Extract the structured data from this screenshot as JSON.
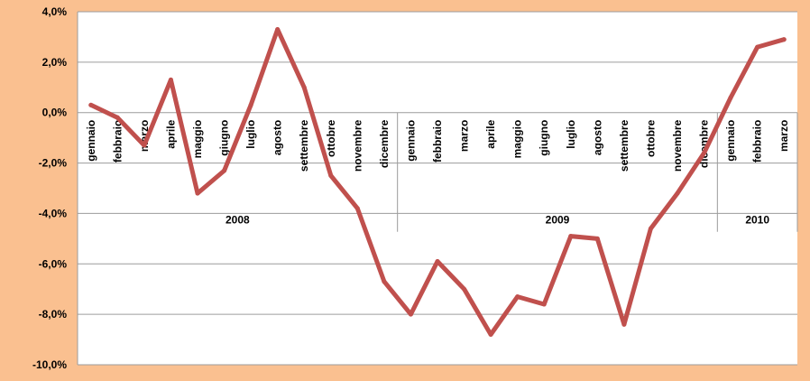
{
  "chart_data": {
    "type": "line",
    "title": "",
    "xlabel": "",
    "ylabel": "",
    "ylim": [
      -10,
      4
    ],
    "yticks": [
      4,
      2,
      0,
      -2,
      -4,
      -6,
      -8,
      -10
    ],
    "ytick_labels": [
      "4,0%",
      "2,0%",
      "0,0%",
      "-2,0%",
      "-4,0%",
      "-6,0%",
      "-8,0%",
      "-10,0%"
    ],
    "grid": true,
    "legend": "none",
    "year_groups": [
      {
        "label": "2008",
        "count": 12
      },
      {
        "label": "2009",
        "count": 12
      },
      {
        "label": "2010",
        "count": 3
      }
    ],
    "categories": [
      "gennaio",
      "febbraio",
      "marzo",
      "aprile",
      "maggio",
      "giugno",
      "luglio",
      "agosto",
      "settembre",
      "ottobre",
      "novembre",
      "dicembre",
      "gennaio",
      "febbraio",
      "marzo",
      "aprile",
      "maggio",
      "giugno",
      "luglio",
      "agosto",
      "settembre",
      "ottobre",
      "novembre",
      "dicembre",
      "gennaio",
      "febbraio",
      "marzo"
    ],
    "series": [
      {
        "values": [
          0.3,
          -0.2,
          -1.3,
          1.3,
          -3.2,
          -2.3,
          0.3,
          3.3,
          1.0,
          -2.5,
          -3.8,
          -6.7,
          -8.0,
          -5.9,
          -7.0,
          -8.8,
          -7.3,
          -7.6,
          -4.9,
          -5.0,
          -8.4,
          -4.6,
          -3.2,
          -1.6,
          0.6,
          2.6,
          2.9
        ]
      }
    ],
    "colors": {
      "background": "#FAC090",
      "plot_area": "#FFFFFF",
      "line": "#C0504D",
      "grid": "#9C9C9C",
      "text": "#000000"
    }
  }
}
